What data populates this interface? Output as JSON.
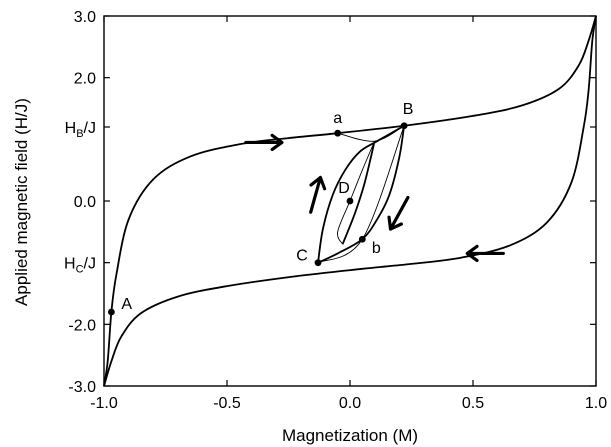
{
  "chart_data": {
    "type": "line",
    "xlabel": "Magnetization (M)",
    "ylabel": "Applied magnetic field (H/J)",
    "xlim": [
      -1.0,
      1.0
    ],
    "ylim": [
      -3.0,
      3.0
    ],
    "x_ticks": [
      {
        "value": -1.0,
        "label": "-1.0"
      },
      {
        "value": -0.5,
        "label": "-0.5"
      },
      {
        "value": 0.0,
        "label": "0.0"
      },
      {
        "value": 0.5,
        "label": "0.5"
      },
      {
        "value": 1.0,
        "label": "1.0"
      }
    ],
    "y_ticks": [
      {
        "value": 3.0,
        "label": "3.0"
      },
      {
        "value": 2.0,
        "label": "2.0"
      },
      {
        "value": 0.0,
        "label": "0.0"
      },
      {
        "value": -2.0,
        "label": "-2.0"
      },
      {
        "value": -3.0,
        "label": "-3.0"
      }
    ],
    "y_special_ticks": [
      {
        "value": 1.2,
        "main": "H",
        "sub": "B",
        "rest": "/J"
      },
      {
        "value": -1.0,
        "main": "H",
        "sub": "C",
        "rest": "/J"
      }
    ],
    "series": [
      {
        "key": "outer-upper",
        "style": "thick",
        "points": [
          [
            -1.0,
            -3.0
          ],
          [
            -0.985,
            -2.6
          ],
          [
            -0.97,
            -1.8
          ],
          [
            -0.95,
            -1.2
          ],
          [
            -0.9,
            -0.3
          ],
          [
            -0.8,
            0.35
          ],
          [
            -0.65,
            0.72
          ],
          [
            -0.45,
            0.92
          ],
          [
            -0.25,
            1.02
          ],
          [
            -0.05,
            1.1
          ],
          [
            0.22,
            1.22
          ],
          [
            0.5,
            1.38
          ],
          [
            0.7,
            1.55
          ],
          [
            0.85,
            1.82
          ],
          [
            0.93,
            2.2
          ],
          [
            0.97,
            2.6
          ],
          [
            1.0,
            3.0
          ]
        ]
      },
      {
        "key": "outer-lower",
        "style": "thick",
        "points": [
          [
            -1.0,
            -3.0
          ],
          [
            -0.97,
            -2.6
          ],
          [
            -0.93,
            -2.2
          ],
          [
            -0.85,
            -1.82
          ],
          [
            -0.7,
            -1.55
          ],
          [
            -0.5,
            -1.38
          ],
          [
            -0.22,
            -1.22
          ],
          [
            0.05,
            -1.1
          ],
          [
            0.25,
            -1.02
          ],
          [
            0.45,
            -0.92
          ],
          [
            0.65,
            -0.72
          ],
          [
            0.8,
            -0.35
          ],
          [
            0.9,
            0.3
          ],
          [
            0.95,
            1.2
          ],
          [
            0.97,
            1.8
          ],
          [
            0.985,
            2.6
          ],
          [
            1.0,
            3.0
          ]
        ]
      },
      {
        "key": "minor-loop-down",
        "style": "thick",
        "points": [
          [
            0.22,
            1.22
          ],
          [
            0.2,
            0.7
          ],
          [
            0.16,
            0.1
          ],
          [
            0.11,
            -0.3
          ],
          [
            0.05,
            -0.62
          ],
          [
            -0.05,
            -0.85
          ],
          [
            -0.13,
            -1.0
          ]
        ]
      },
      {
        "key": "minor-loop-up",
        "style": "thick",
        "points": [
          [
            -0.13,
            -1.0
          ],
          [
            -0.11,
            -0.45
          ],
          [
            -0.07,
            0.1
          ],
          [
            -0.02,
            0.5
          ],
          [
            0.04,
            0.8
          ],
          [
            0.11,
            0.97
          ],
          [
            0.22,
            1.22
          ]
        ]
      },
      {
        "key": "inner-up",
        "style": "thick",
        "points": [
          [
            -0.03,
            -0.7
          ],
          [
            0.02,
            -0.2
          ],
          [
            0.06,
            0.3
          ],
          [
            0.1,
            0.97
          ]
        ]
      },
      {
        "key": "inner-down",
        "style": "thin",
        "points": [
          [
            0.1,
            0.97
          ],
          [
            0.05,
            0.5
          ],
          [
            0.0,
            0.0
          ],
          [
            -0.05,
            -0.5
          ],
          [
            -0.03,
            -0.7
          ]
        ]
      },
      {
        "key": "a-to-b-thin",
        "style": "thin",
        "points": [
          [
            -0.05,
            1.1
          ],
          [
            0.1,
            0.97
          ],
          [
            0.22,
            1.22
          ]
        ]
      },
      {
        "key": "c-to-b-thin",
        "style": "thin",
        "points": [
          [
            -0.13,
            -1.0
          ],
          [
            0.05,
            -0.62
          ],
          [
            0.22,
            1.22
          ]
        ]
      }
    ],
    "points": [
      {
        "label": "A",
        "x": -0.97,
        "y": -1.8
      },
      {
        "label": "a",
        "x": -0.05,
        "y": 1.1
      },
      {
        "label": "B",
        "x": 0.22,
        "y": 1.22
      },
      {
        "label": "D",
        "x": 0.0,
        "y": 0.0
      },
      {
        "label": "b",
        "x": 0.05,
        "y": -0.62
      },
      {
        "label": "C",
        "x": -0.13,
        "y": -1.0
      }
    ],
    "arrows": [
      {
        "direction": "right",
        "x": -0.35,
        "y": 0.95
      },
      {
        "direction": "up",
        "x": -0.14,
        "y": 0.1
      },
      {
        "direction": "down-left",
        "x": 0.2,
        "y": -0.2
      },
      {
        "direction": "left",
        "x": 0.55,
        "y": -0.85
      }
    ]
  }
}
